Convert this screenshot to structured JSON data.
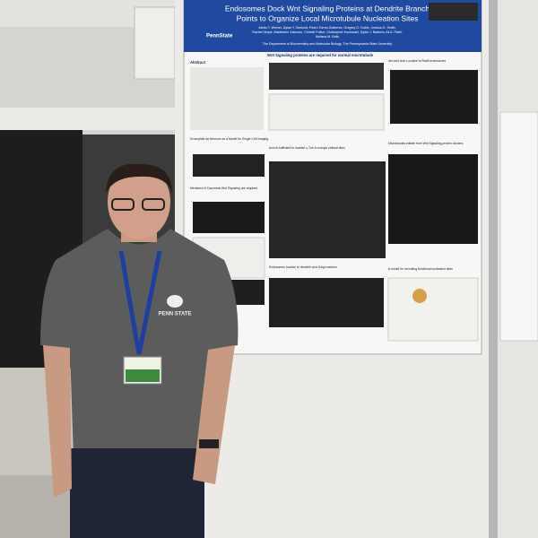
{
  "poster": {
    "institution": "PennState",
    "title_lines": [
      "Endosomes Dock Wnt Signaling Proteins at Dendrite Branch",
      "Points to Organize Local Microtubule Nucleation Sites"
    ],
    "authors_lines": [
      "Alexis T. Weiner, Dylan Y. Seebold, Pedro Torres-Gutierrez, Gregory O. Kothe, Jessica G. Smith,",
      "Rachel Simpe, Madeleine Zaknoen, Christie Folker, Christopher Kozlowski, Dylan J. Barbera, Ali A. Patel,",
      "Melissa M. Rolls"
    ],
    "department": "The Department of Biochemistry and Molecular Biology, The Pennsylvania State University",
    "sections": {
      "abstract": "Abstract",
      "wnt_required": "Wnt Signaling proteins are required for normal microtubule",
      "da_neurons": "Drosophila da Neurons as a Model for Single Cell Imaging",
      "axin_sufficient": "Axin is sufficient to localize γ-Tub to ectopic cellular sites",
      "members": "Members of Canonical Wnt Signaling are required",
      "dsh_axin": "dsh and Axin Localize to Rab5 endosomes",
      "microtubules_initiate": "Microtubules initiate from Wnt Signaling protein clusters",
      "endosomes": "Endosomes localize to dendrite and Golgi markers",
      "model": "A model for recruiting functional nucleation sites"
    }
  },
  "shirt_logo": "PENN STATE"
}
